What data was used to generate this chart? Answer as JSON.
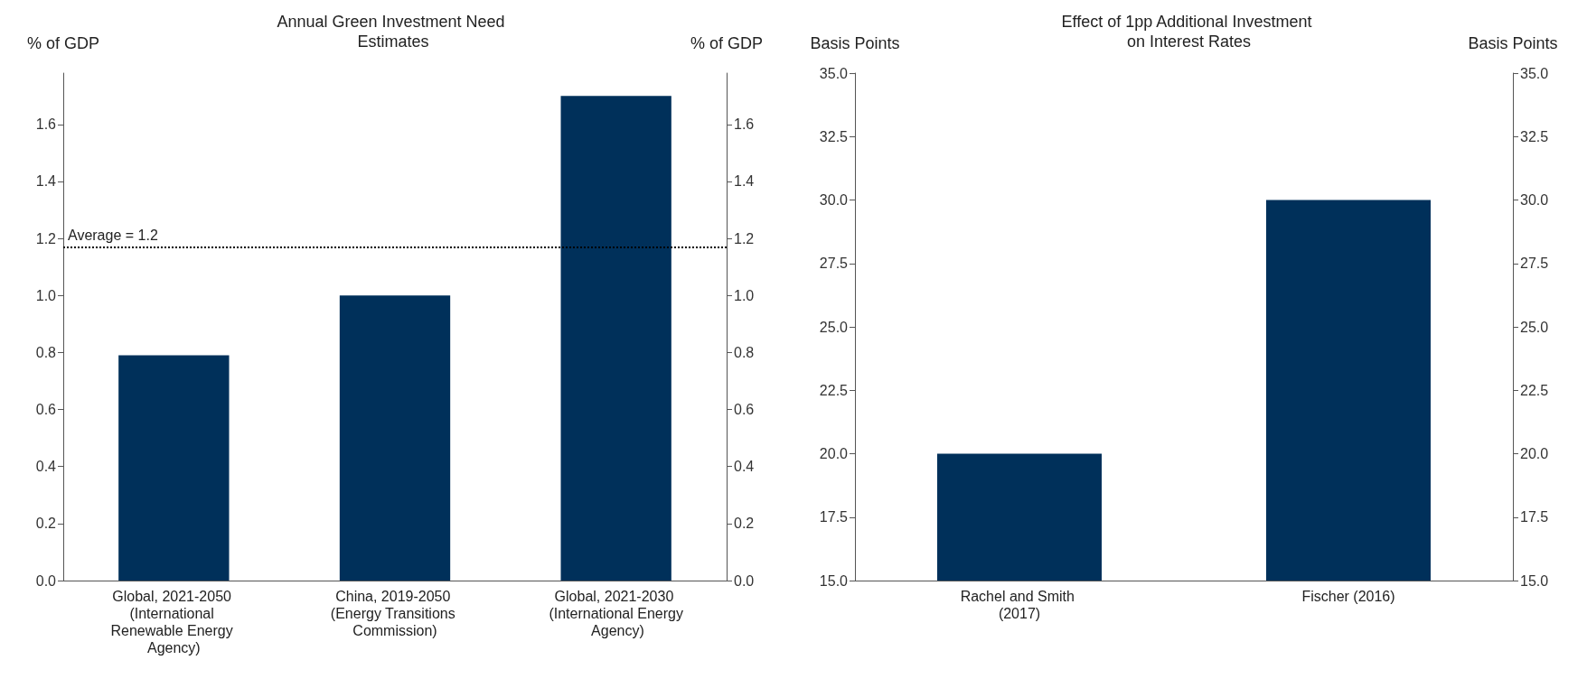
{
  "chart_data": [
    {
      "type": "bar",
      "title": "Annual Green Investment Need Estimates",
      "ylabel": "% of GDP",
      "y2label": "% of GDP",
      "categories": [
        "Global, 2021-2050 (International Renewable Energy Agency)",
        "China, 2019-2050 (Energy Transitions Commission)",
        "Global, 2021-2030 (International Energy Agency)"
      ],
      "values": [
        0.79,
        1.0,
        1.7
      ],
      "color": "#00305a",
      "ylim": [
        0,
        1.78
      ],
      "yticks": [
        {
          "value": 0,
          "label": "0.0"
        },
        0.2,
        0.4,
        0.6,
        0.8,
        {
          "value": 1,
          "label": "1.0"
        },
        1.2,
        1.4,
        1.6
      ],
      "y2lim": [
        0,
        1.78
      ],
      "y2ticks": [
        {
          "value": 0,
          "label": "0.0"
        },
        0.2,
        0.4,
        0.6,
        0.8,
        {
          "value": 1,
          "label": "1.0"
        },
        1.2,
        1.4,
        1.6
      ],
      "ref_lines": [
        {
          "axis": "y",
          "value": 1.17,
          "label": "Average = 1.2",
          "color": "#000000",
          "line_style": "dotted"
        }
      ],
      "grid": false
    },
    {
      "type": "bar",
      "title": "Effect of 1pp Additional Investment on Interest Rates",
      "ylabel": "Basis Points",
      "y2label": "Basis Points",
      "categories": [
        "Rachel and Smith (2017)",
        "Fischer (2016)"
      ],
      "values": [
        20,
        30
      ],
      "color": "#00305a",
      "ylim": [
        15,
        35
      ],
      "yticks": [
        {
          "value": 15,
          "label": "15.0"
        },
        17.5,
        {
          "value": 20,
          "label": "20.0"
        },
        22.5,
        {
          "value": 25,
          "label": "25.0"
        },
        27.5,
        {
          "value": 30,
          "label": "30.0"
        },
        32.5,
        {
          "value": 35,
          "label": "35.0"
        }
      ],
      "y2lim": [
        15,
        35
      ],
      "y2ticks": [
        {
          "value": 15,
          "label": "15.0"
        },
        17.5,
        {
          "value": 20,
          "label": "20.0"
        },
        22.5,
        {
          "value": 25,
          "label": "25.0"
        },
        27.5,
        {
          "value": 30,
          "label": "30.0"
        },
        32.5,
        {
          "value": 35,
          "label": "35.0"
        }
      ],
      "grid": false
    }
  ]
}
